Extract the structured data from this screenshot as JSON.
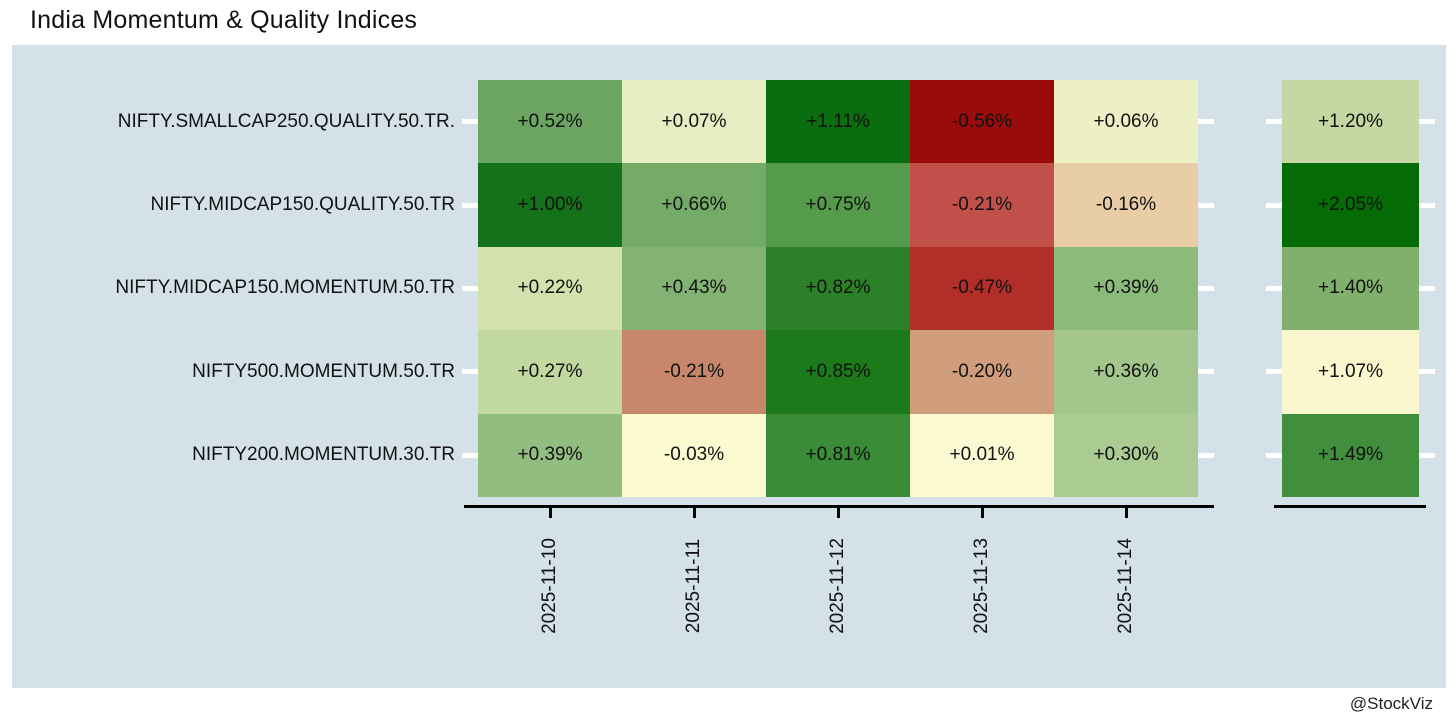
{
  "title": "India Momentum & Quality Indices",
  "watermark": "@StockViz",
  "colors": {
    "page_bg": "#ffffff",
    "panel_bg": "#d5e1e9",
    "axis": "#000000",
    "tick": "#ffffff",
    "text": "#111111"
  },
  "chart_data": {
    "type": "heatmap",
    "title": "India Momentum & Quality Indices",
    "x_axis_labels": [
      "2025-11-10",
      "2025-11-11",
      "2025-11-12",
      "2025-11-13",
      "2025-11-14"
    ],
    "value_format": "signed percent, two decimals",
    "legend": "none",
    "rows": [
      {
        "label": "NIFTY.SMALLCAP250.QUALITY.50.TR.",
        "values": [
          0.52,
          0.07,
          1.11,
          -0.56,
          0.06
        ],
        "cell_labels": [
          "+0.52%",
          "+0.07%",
          "+1.11%",
          "-0.56%",
          "+0.06%"
        ],
        "cell_colors": [
          "#6ba561",
          "#e7edc3",
          "#0b6e0e",
          "#9a0c0c",
          "#edefc5"
        ],
        "summary_value": 1.2,
        "summary_label": "+1.20%",
        "summary_color": "#c5d8a3"
      },
      {
        "label": "NIFTY.MIDCAP150.QUALITY.50.TR",
        "values": [
          1.0,
          0.66,
          0.75,
          -0.21,
          -0.16
        ],
        "cell_labels": [
          "+1.00%",
          "+0.66%",
          "+0.75%",
          "-0.21%",
          "-0.16%"
        ],
        "cell_colors": [
          "#15721a",
          "#74ab68",
          "#569a4c",
          "#c1504a",
          "#e8cda6"
        ],
        "summary_value": 2.05,
        "summary_label": "+2.05%",
        "summary_color": "#056b05"
      },
      {
        "label": "NIFTY.MIDCAP150.MOMENTUM.50.TR",
        "values": [
          0.22,
          0.43,
          0.82,
          -0.47,
          0.39
        ],
        "cell_labels": [
          "+0.22%",
          "+0.43%",
          "+0.82%",
          "-0.47%",
          "+0.39%"
        ],
        "cell_colors": [
          "#d3e1ae",
          "#83b374",
          "#2c8027",
          "#b22e28",
          "#8cba7b"
        ],
        "summary_value": 1.4,
        "summary_label": "+1.40%",
        "summary_color": "#80b06b"
      },
      {
        "label": "NIFTY500.MOMENTUM.50.TR",
        "values": [
          0.27,
          -0.21,
          0.85,
          -0.2,
          0.36
        ],
        "cell_labels": [
          "+0.27%",
          "-0.21%",
          "+0.85%",
          "-0.20%",
          "+0.36%"
        ],
        "cell_colors": [
          "#c1d8a0",
          "#c8876d",
          "#1d7a1b",
          "#d09d7d",
          "#a2c68c"
        ],
        "summary_value": 1.07,
        "summary_label": "+1.07%",
        "summary_color": "#fbf8d0"
      },
      {
        "label": "NIFTY200.MOMENTUM.30.TR",
        "values": [
          0.39,
          -0.03,
          0.81,
          0.01,
          0.3
        ],
        "cell_labels": [
          "+0.39%",
          "-0.03%",
          "+0.81%",
          "+0.01%",
          "+0.30%"
        ],
        "cell_colors": [
          "#92bd80",
          "#fcfad1",
          "#3a8c36",
          "#fbf9d1",
          "#aacb91"
        ],
        "summary_value": 1.49,
        "summary_label": "+1.49%",
        "summary_color": "#418f3d"
      }
    ]
  }
}
